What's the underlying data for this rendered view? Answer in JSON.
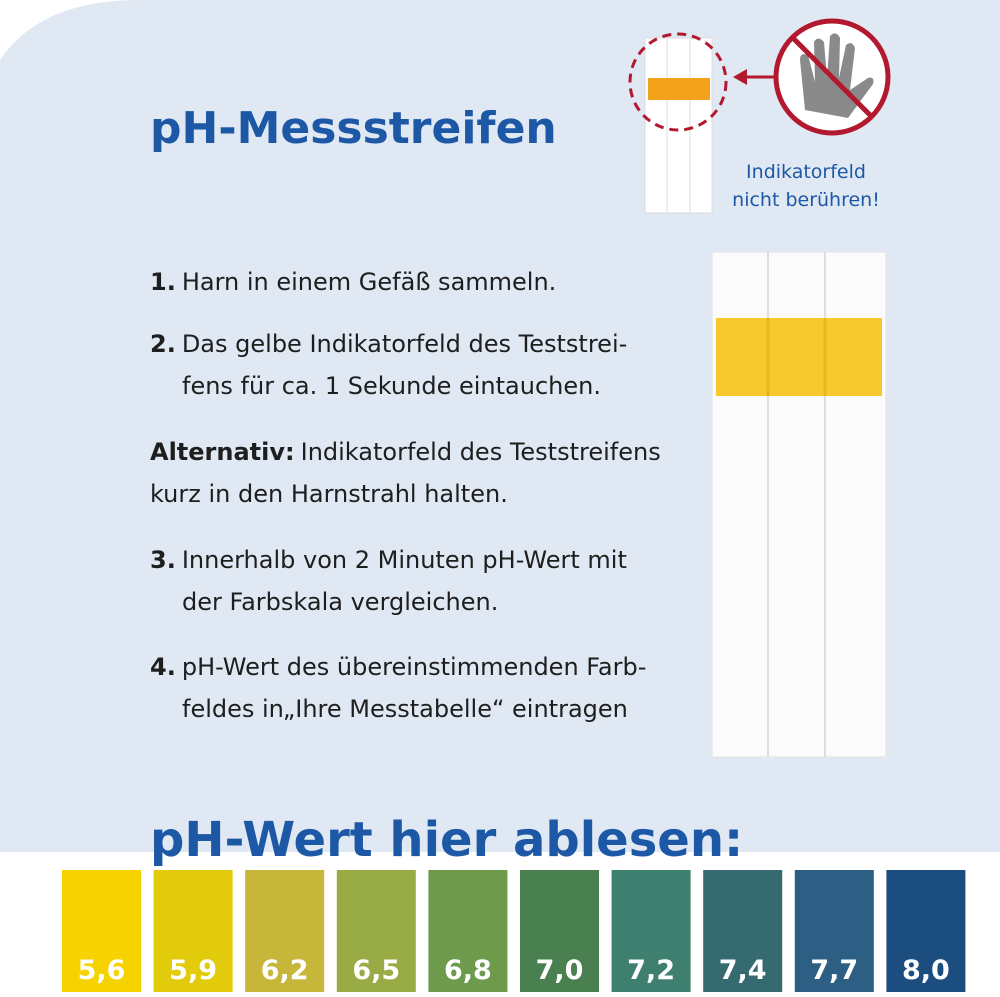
{
  "header": {
    "title": "pH-Messstreifen",
    "warning": {
      "lines": [
        "Indikatorfeld",
        "nicht berühren!"
      ]
    }
  },
  "steps": [
    {
      "number": "1.",
      "lines": [
        "Harn in einem Gefäß sammeln."
      ]
    },
    {
      "number": "2.",
      "lines": [
        "Das gelbe Indikatorfeld des Teststrei-",
        "fens für ca. 1 Sekunde eintauchen."
      ]
    },
    {
      "number": "Alternativ:",
      "lines": [
        "Indikatorfeld des Teststreifens",
        "kurz in den Harnstrahl halten."
      ]
    },
    {
      "number": "3.",
      "lines": [
        "Innerhalb von 2 Minuten pH-Wert mit",
        "der Farbskala vergleichen."
      ]
    },
    {
      "number": "4.",
      "lines": [
        "pH-Wert des übereinstimmenden Farb-",
        "feldes in„Ihre Messtabelle“ eintragen"
      ]
    }
  ],
  "scale": {
    "heading": "pH-Wert hier ablesen:",
    "swatches": [
      {
        "label": "5,6",
        "color": "#f6d200"
      },
      {
        "label": "5,9",
        "color": "#e2cb0a"
      },
      {
        "label": "6,2",
        "color": "#c6b73b"
      },
      {
        "label": "6,5",
        "color": "#99ab44"
      },
      {
        "label": "6,8",
        "color": "#6e9a4b"
      },
      {
        "label": "7,0",
        "color": "#4a7f50"
      },
      {
        "label": "7,2",
        "color": "#3e7f6f"
      },
      {
        "label": "7,4",
        "color": "#356a70"
      },
      {
        "label": "7,7",
        "color": "#2c5f83"
      },
      {
        "label": "8,0",
        "color": "#1b4e7e"
      }
    ]
  }
}
